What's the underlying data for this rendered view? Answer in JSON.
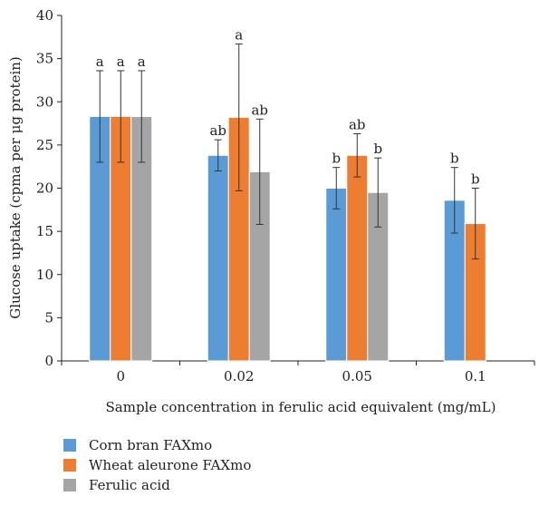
{
  "chart_data": {
    "type": "bar",
    "categories": [
      "0",
      "0.02",
      "0.05",
      "0.1"
    ],
    "xlabel": "Sample concentration in ferulic acid equivalent (mg/mL)",
    "ylabel": "Glucose uptake (cpma per μg protein)",
    "ylim": [
      0,
      40
    ],
    "yticks": [
      "0",
      "5",
      "10",
      "15",
      "20",
      "25",
      "30",
      "35",
      "40"
    ],
    "grid": false,
    "legend_position": "bottom-left",
    "series": [
      {
        "name": "Corn bran FAXmo",
        "color": "#5B9BD5",
        "values": [
          28.3,
          23.8,
          20.0,
          18.6
        ],
        "errors": [
          5.3,
          1.8,
          2.4,
          3.8
        ],
        "labels": [
          "a",
          "ab",
          "b",
          "b"
        ]
      },
      {
        "name": "Wheat aleurone FAXmo",
        "color": "#ED7D31",
        "values": [
          28.3,
          28.2,
          23.8,
          15.9
        ],
        "errors": [
          5.3,
          8.5,
          2.5,
          4.1
        ],
        "labels": [
          "a",
          "a",
          "ab",
          "b"
        ]
      },
      {
        "name": "Ferulic acid",
        "color": "#A5A5A5",
        "values": [
          28.3,
          21.9,
          19.5,
          null
        ],
        "errors": [
          5.3,
          6.1,
          4.0,
          null
        ],
        "labels": [
          "a",
          "ab",
          "b",
          ""
        ]
      }
    ]
  }
}
